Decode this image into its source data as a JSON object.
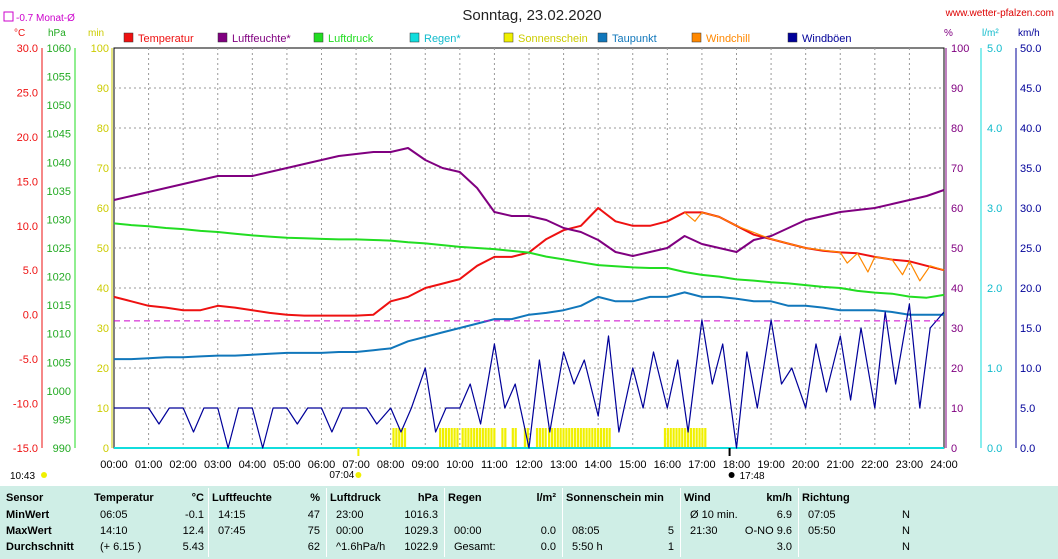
{
  "page": {
    "title": "Sonntag, 23.02.2020",
    "site": "www.wetter-pfalzen.com"
  },
  "avg_label": "-0.7 Monat-Ø",
  "units_left": [
    "°C",
    "hPa",
    "min"
  ],
  "units_right": [
    "%",
    "l/m²",
    "km/h"
  ],
  "legend": [
    {
      "label": "Temperatur",
      "color": "#ee1111"
    },
    {
      "label": "Luftfeuchte*",
      "color": "#800080"
    },
    {
      "label": "Luftdruck",
      "color": "#22dd22"
    },
    {
      "label": "Regen*",
      "color": "#11dddd"
    },
    {
      "label": "Sonnenschein",
      "color": "#f0f000"
    },
    {
      "label": "Taupunkt",
      "color": "#1177bb"
    },
    {
      "label": "Windchill",
      "color": "#ff8800"
    },
    {
      "label": "Windböen",
      "color": "#000099"
    }
  ],
  "axis_labels": {
    "temp": [
      "30.0",
      "25.0",
      "20.0",
      "15.0",
      "10.0",
      "5.0",
      "0.0",
      "-5.0",
      "-10.0",
      "-15.0"
    ],
    "pressure": [
      "1060",
      "1055",
      "1050",
      "1045",
      "1040",
      "1035",
      "1030",
      "1025",
      "1020",
      "1015",
      "1010",
      "1005",
      "1000",
      "995",
      "990"
    ],
    "sun_min": [
      "100",
      "90",
      "80",
      "70",
      "60",
      "50",
      "40",
      "30",
      "20",
      "10",
      "0"
    ],
    "humidity": [
      "100",
      "90",
      "80",
      "70",
      "60",
      "50",
      "40",
      "30",
      "20",
      "10",
      "0"
    ],
    "rain": [
      "5.0",
      "4.0",
      "3.0",
      "2.0",
      "1.0",
      "0.0"
    ],
    "wind": [
      "50.0",
      "45.0",
      "40.0",
      "35.0",
      "30.0",
      "25.0",
      "20.0",
      "15.0",
      "10.0",
      "5.0",
      "0.0"
    ],
    "x": [
      "00:00",
      "01:00",
      "02:00",
      "03:00",
      "04:00",
      "05:00",
      "06:00",
      "07:00",
      "08:00",
      "09:00",
      "10:00",
      "11:00",
      "12:00",
      "13:00",
      "14:00",
      "15:00",
      "16:00",
      "17:00",
      "18:00",
      "19:00",
      "20:00",
      "21:00",
      "22:00",
      "23:00",
      "24:00"
    ]
  },
  "sun_events": {
    "sunrise": "07:04",
    "sunset": "17:48",
    "moonrise": "10:43"
  },
  "summary": {
    "headers": [
      {
        "label": "Sensor",
        "unit": ""
      },
      {
        "label": "Temperatur",
        "unit": "°C"
      },
      {
        "label": "Luftfeuchte",
        "unit": "%"
      },
      {
        "label": "Luftdruck",
        "unit": "hPa"
      },
      {
        "label": "Regen",
        "unit": "l/m²"
      },
      {
        "label": "Sonnenschein min",
        "unit": ""
      },
      {
        "label": "Wind",
        "unit": "km/h"
      },
      {
        "label": "Richtung",
        "unit": ""
      }
    ],
    "rows": [
      {
        "label": "MinWert",
        "temp_t": "06:05",
        "temp_v": "-0.1",
        "hum_t": "14:15",
        "hum_v": "47",
        "press_t": "23:00",
        "press_v": "1016.3",
        "rain_t": "",
        "rain_v": "",
        "sun_t": "",
        "sun_v": "",
        "wind_t": "Ø 10 min.",
        "wind_v": "6.9",
        "dir_t": "07:05",
        "dir_v": "N"
      },
      {
        "label": "MaxWert",
        "temp_t": "14:10",
        "temp_v": "12.4",
        "hum_t": "07:45",
        "hum_v": "75",
        "press_t": "00:00",
        "press_v": "1029.3",
        "rain_t": "00:00",
        "rain_v": "0.0",
        "sun_t": "08:05",
        "sun_v": "5",
        "wind_t": "21:30",
        "wind_v": "O-NO 9.6",
        "dir_t": "05:50",
        "dir_v": "N"
      },
      {
        "label": "Durchschnitt",
        "temp_t": "(+ 6.15 )",
        "temp_v": "5.43",
        "hum_t": "",
        "hum_v": "62",
        "press_t": "^1.6hPa/h",
        "press_v": "1022.9",
        "rain_t": "Gesamt:",
        "rain_v": "0.0",
        "sun_t": "5:50 h",
        "sun_v": "1",
        "wind_t": "",
        "wind_v": "3.0",
        "dir_t": "",
        "dir_v": "N"
      }
    ]
  },
  "chart_data": {
    "type": "line",
    "title": "Sonntag, 23.02.2020",
    "x_unit": "hour of day",
    "xlim": [
      0,
      24
    ],
    "axes": {
      "temp_c": [
        -15,
        30
      ],
      "pressure_hpa": [
        990,
        1060
      ],
      "sunshine_min": [
        0,
        100
      ],
      "humidity_pct": [
        0,
        100
      ],
      "rain_lm2": [
        0,
        5
      ],
      "wind_kmh": [
        0,
        50
      ]
    },
    "grid": true,
    "series": [
      {
        "name": "Temperatur",
        "axis": "temp_c",
        "color": "#ee1111",
        "x": [
          0,
          0.5,
          1,
          1.5,
          2,
          2.5,
          3,
          3.5,
          4,
          4.5,
          5,
          5.5,
          6,
          6.5,
          7,
          7.5,
          8,
          8.5,
          9,
          9.5,
          10,
          10.5,
          11,
          11.5,
          12,
          12.5,
          13,
          13.5,
          14,
          14.5,
          15,
          15.5,
          16,
          16.5,
          17,
          17.5,
          18,
          18.5,
          19,
          19.5,
          20,
          20.5,
          21,
          21.5,
          22,
          22.5,
          23,
          23.5,
          24
        ],
        "y": [
          2.0,
          1.5,
          1.0,
          0.8,
          0.5,
          0.5,
          1.0,
          0.8,
          0.5,
          0.2,
          0.0,
          -0.1,
          -0.1,
          -0.1,
          -0.1,
          0.0,
          1.5,
          2.0,
          3.0,
          3.5,
          4.0,
          5.5,
          6.5,
          6.5,
          7.0,
          8.5,
          9.5,
          10.0,
          12.0,
          10.5,
          10.0,
          10.0,
          10.5,
          11.5,
          11.5,
          11.0,
          10.0,
          9.0,
          8.5,
          8.0,
          7.5,
          7.2,
          7.0,
          6.9,
          6.5,
          6.2,
          6.0,
          5.5,
          5.0
        ]
      },
      {
        "name": "Luftfeuchte*",
        "axis": "humidity_pct",
        "color": "#800080",
        "x": [
          0,
          0.5,
          1,
          1.5,
          2,
          2.5,
          3,
          3.5,
          4,
          4.5,
          5,
          5.5,
          6,
          6.5,
          7,
          7.5,
          8,
          8.5,
          9,
          9.5,
          10,
          10.5,
          11,
          11.5,
          12,
          12.5,
          13,
          13.5,
          14,
          14.5,
          15,
          15.5,
          16,
          16.5,
          17,
          17.5,
          18,
          18.5,
          19,
          19.5,
          20,
          20.5,
          21,
          21.5,
          22,
          22.5,
          23,
          23.5,
          24
        ],
        "y": [
          62,
          63,
          64,
          65,
          66,
          67,
          68,
          68,
          68,
          69,
          70,
          71,
          72,
          73,
          73.5,
          74,
          74,
          75,
          72,
          70,
          69,
          65,
          59,
          58,
          58,
          57,
          55,
          54,
          52,
          49,
          48,
          49,
          50,
          53,
          51,
          50,
          49,
          52,
          53,
          55,
          57,
          58,
          59,
          59.5,
          60,
          61,
          62,
          63,
          64.5
        ]
      },
      {
        "name": "Luftdruck",
        "axis": "pressure_hpa",
        "color": "#22dd22",
        "x": [
          0,
          0.5,
          1,
          1.5,
          2,
          2.5,
          3,
          3.5,
          4,
          4.5,
          5,
          5.5,
          6,
          6.5,
          7,
          7.5,
          8,
          8.5,
          9,
          9.5,
          10,
          10.5,
          11,
          11.5,
          12,
          12.5,
          13,
          13.5,
          14,
          14.5,
          15,
          15.5,
          16,
          16.5,
          17,
          17.5,
          18,
          18.5,
          19,
          19.5,
          20,
          20.5,
          21,
          21.5,
          22,
          22.5,
          23,
          23.5,
          24
        ],
        "y": [
          1029.3,
          1029.0,
          1028.8,
          1028.5,
          1028.3,
          1028.0,
          1027.8,
          1027.5,
          1027.2,
          1027.0,
          1026.8,
          1026.7,
          1026.6,
          1026.5,
          1026.5,
          1026.4,
          1026.3,
          1026.0,
          1025.8,
          1025.5,
          1025.2,
          1025.0,
          1024.8,
          1024.5,
          1024.2,
          1023.5,
          1023.0,
          1022.5,
          1022.0,
          1021.8,
          1021.6,
          1021.5,
          1021.5,
          1020.8,
          1020.3,
          1020.0,
          1019.5,
          1019.3,
          1019.0,
          1018.8,
          1018.5,
          1018.2,
          1018.0,
          1017.5,
          1017.2,
          1017.0,
          1016.5,
          1016.3,
          1016.8
        ]
      },
      {
        "name": "Regen*",
        "axis": "rain_lm2",
        "color": "#11dddd",
        "x": [
          0,
          24
        ],
        "y": [
          0.0,
          0.0
        ]
      },
      {
        "name": "Taupunkt",
        "axis": "temp_c",
        "color": "#1177bb",
        "x": [
          0,
          0.5,
          1,
          1.5,
          2,
          2.5,
          3,
          3.5,
          4,
          4.5,
          5,
          5.5,
          6,
          6.5,
          7,
          7.5,
          8,
          8.5,
          9,
          9.5,
          10,
          10.5,
          11,
          11.5,
          12,
          12.5,
          13,
          13.5,
          14,
          14.5,
          15,
          15.5,
          16,
          16.5,
          17,
          17.5,
          18,
          18.5,
          19,
          19.5,
          20,
          20.5,
          21,
          21.5,
          22,
          22.5,
          23,
          23.5,
          24
        ],
        "y": [
          -5.0,
          -5.0,
          -4.9,
          -4.8,
          -4.8,
          -4.7,
          -4.6,
          -4.6,
          -4.5,
          -4.4,
          -4.3,
          -4.3,
          -4.3,
          -4.2,
          -4.2,
          -4.0,
          -3.8,
          -3.0,
          -2.5,
          -2.0,
          -1.5,
          -1.0,
          -0.5,
          -0.5,
          0.0,
          0.2,
          0.5,
          1.0,
          2.0,
          1.5,
          1.5,
          2.0,
          2.0,
          2.5,
          2.0,
          2.0,
          1.8,
          1.5,
          1.5,
          1.0,
          1.0,
          0.8,
          0.5,
          0.5,
          0.5,
          0.3,
          0.0,
          0.0,
          0.0
        ]
      },
      {
        "name": "Windchill",
        "axis": "temp_c",
        "color": "#ff8800",
        "x": [
          16.5,
          16.8,
          17,
          17.5,
          18,
          19,
          20,
          21,
          21.2,
          21.5,
          21.8,
          22,
          22.5,
          22.8,
          23,
          23.3,
          23.6,
          24
        ],
        "y": [
          11.5,
          10.5,
          11.5,
          11.0,
          10.0,
          8.5,
          7.5,
          7.0,
          5.8,
          6.9,
          4.8,
          6.5,
          6.2,
          4.5,
          6.0,
          3.8,
          5.5,
          5.0
        ]
      },
      {
        "name": "Windböen",
        "axis": "wind_kmh",
        "color": "#000099",
        "x": [
          0,
          0.3,
          0.6,
          1,
          1.3,
          1.6,
          2,
          2.3,
          2.6,
          3,
          3.3,
          3.6,
          4,
          4.3,
          4.6,
          5,
          5.3,
          5.6,
          6,
          6.3,
          6.6,
          7,
          7.3,
          7.6,
          8,
          8.3,
          8.6,
          9,
          9.3,
          9.6,
          10,
          10.3,
          10.6,
          11,
          11.3,
          11.6,
          12,
          12.3,
          12.6,
          13,
          13.3,
          13.6,
          14,
          14.3,
          14.6,
          15,
          15.3,
          15.6,
          16,
          16.3,
          16.6,
          17,
          17.3,
          17.6,
          18,
          18.3,
          18.6,
          19,
          19.3,
          19.6,
          20,
          20.3,
          20.6,
          21,
          21.3,
          21.6,
          22,
          22.3,
          22.6,
          23,
          23.3,
          23.6,
          24
        ],
        "y": [
          5,
          5,
          5,
          5,
          3,
          5,
          5,
          2,
          5,
          5,
          0,
          5,
          5,
          0,
          5,
          5,
          3,
          5,
          5,
          2,
          5,
          5,
          5,
          3,
          5,
          2,
          5,
          10,
          2,
          5,
          5,
          8,
          3,
          13,
          5,
          8,
          0,
          11,
          2,
          12,
          8,
          11,
          4,
          14,
          2,
          10,
          5,
          12,
          5,
          11,
          2,
          16,
          8,
          13,
          0,
          12,
          5,
          16,
          8,
          10,
          5,
          13,
          7,
          14,
          6,
          15,
          5,
          17,
          8,
          18,
          5,
          15,
          17
        ]
      }
    ],
    "sunshine_minutes": {
      "axis": "sunshine_min",
      "color": "#f0f000",
      "periods": [
        [
          8.05,
          8.45
        ],
        [
          9.4,
          9.9
        ],
        [
          10.05,
          11.0
        ],
        [
          11.2,
          11.3
        ],
        [
          11.5,
          11.6
        ],
        [
          11.85,
          12.0
        ],
        [
          12.2,
          12.45
        ],
        [
          12.55,
          14.3
        ],
        [
          15.9,
          17.1
        ]
      ],
      "value": 5
    }
  }
}
